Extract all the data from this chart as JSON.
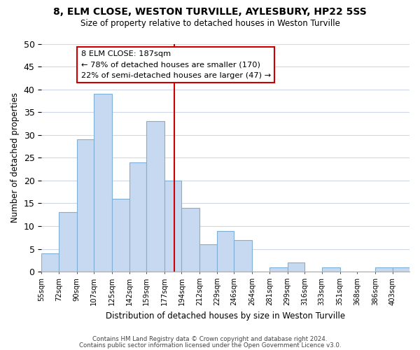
{
  "title": "8, ELM CLOSE, WESTON TURVILLE, AYLESBURY, HP22 5SS",
  "subtitle": "Size of property relative to detached houses in Weston Turville",
  "xlabel": "Distribution of detached houses by size in Weston Turville",
  "ylabel": "Number of detached properties",
  "bin_labels": [
    "55sqm",
    "72sqm",
    "90sqm",
    "107sqm",
    "125sqm",
    "142sqm",
    "159sqm",
    "177sqm",
    "194sqm",
    "212sqm",
    "229sqm",
    "246sqm",
    "264sqm",
    "281sqm",
    "299sqm",
    "316sqm",
    "333sqm",
    "351sqm",
    "368sqm",
    "386sqm",
    "403sqm"
  ],
  "bar_values": [
    4,
    13,
    29,
    39,
    16,
    24,
    33,
    20,
    14,
    6,
    9,
    7,
    0,
    1,
    2,
    0,
    1,
    0,
    0,
    1,
    1
  ],
  "bar_edges": [
    55,
    72,
    90,
    107,
    125,
    142,
    159,
    177,
    194,
    212,
    229,
    246,
    264,
    281,
    299,
    316,
    333,
    351,
    368,
    386,
    403,
    420
  ],
  "ylim": [
    0,
    50
  ],
  "yticks": [
    0,
    5,
    10,
    15,
    20,
    25,
    30,
    35,
    40,
    45,
    50
  ],
  "vline_x": 187,
  "vline_color": "#cc0000",
  "bar_color": "#c6d9f0",
  "bar_edge_color": "#7fafd4",
  "annotation_title": "8 ELM CLOSE: 187sqm",
  "annotation_line1": "← 78% of detached houses are smaller (170)",
  "annotation_line2": "22% of semi-detached houses are larger (47) →",
  "annotation_box_facecolor": "#ffffff",
  "annotation_box_edgecolor": "#cc0000",
  "footer1": "Contains HM Land Registry data © Crown copyright and database right 2024.",
  "footer2": "Contains public sector information licensed under the Open Government Licence v3.0.",
  "background_color": "#ffffff",
  "grid_color": "#d0d8e8"
}
